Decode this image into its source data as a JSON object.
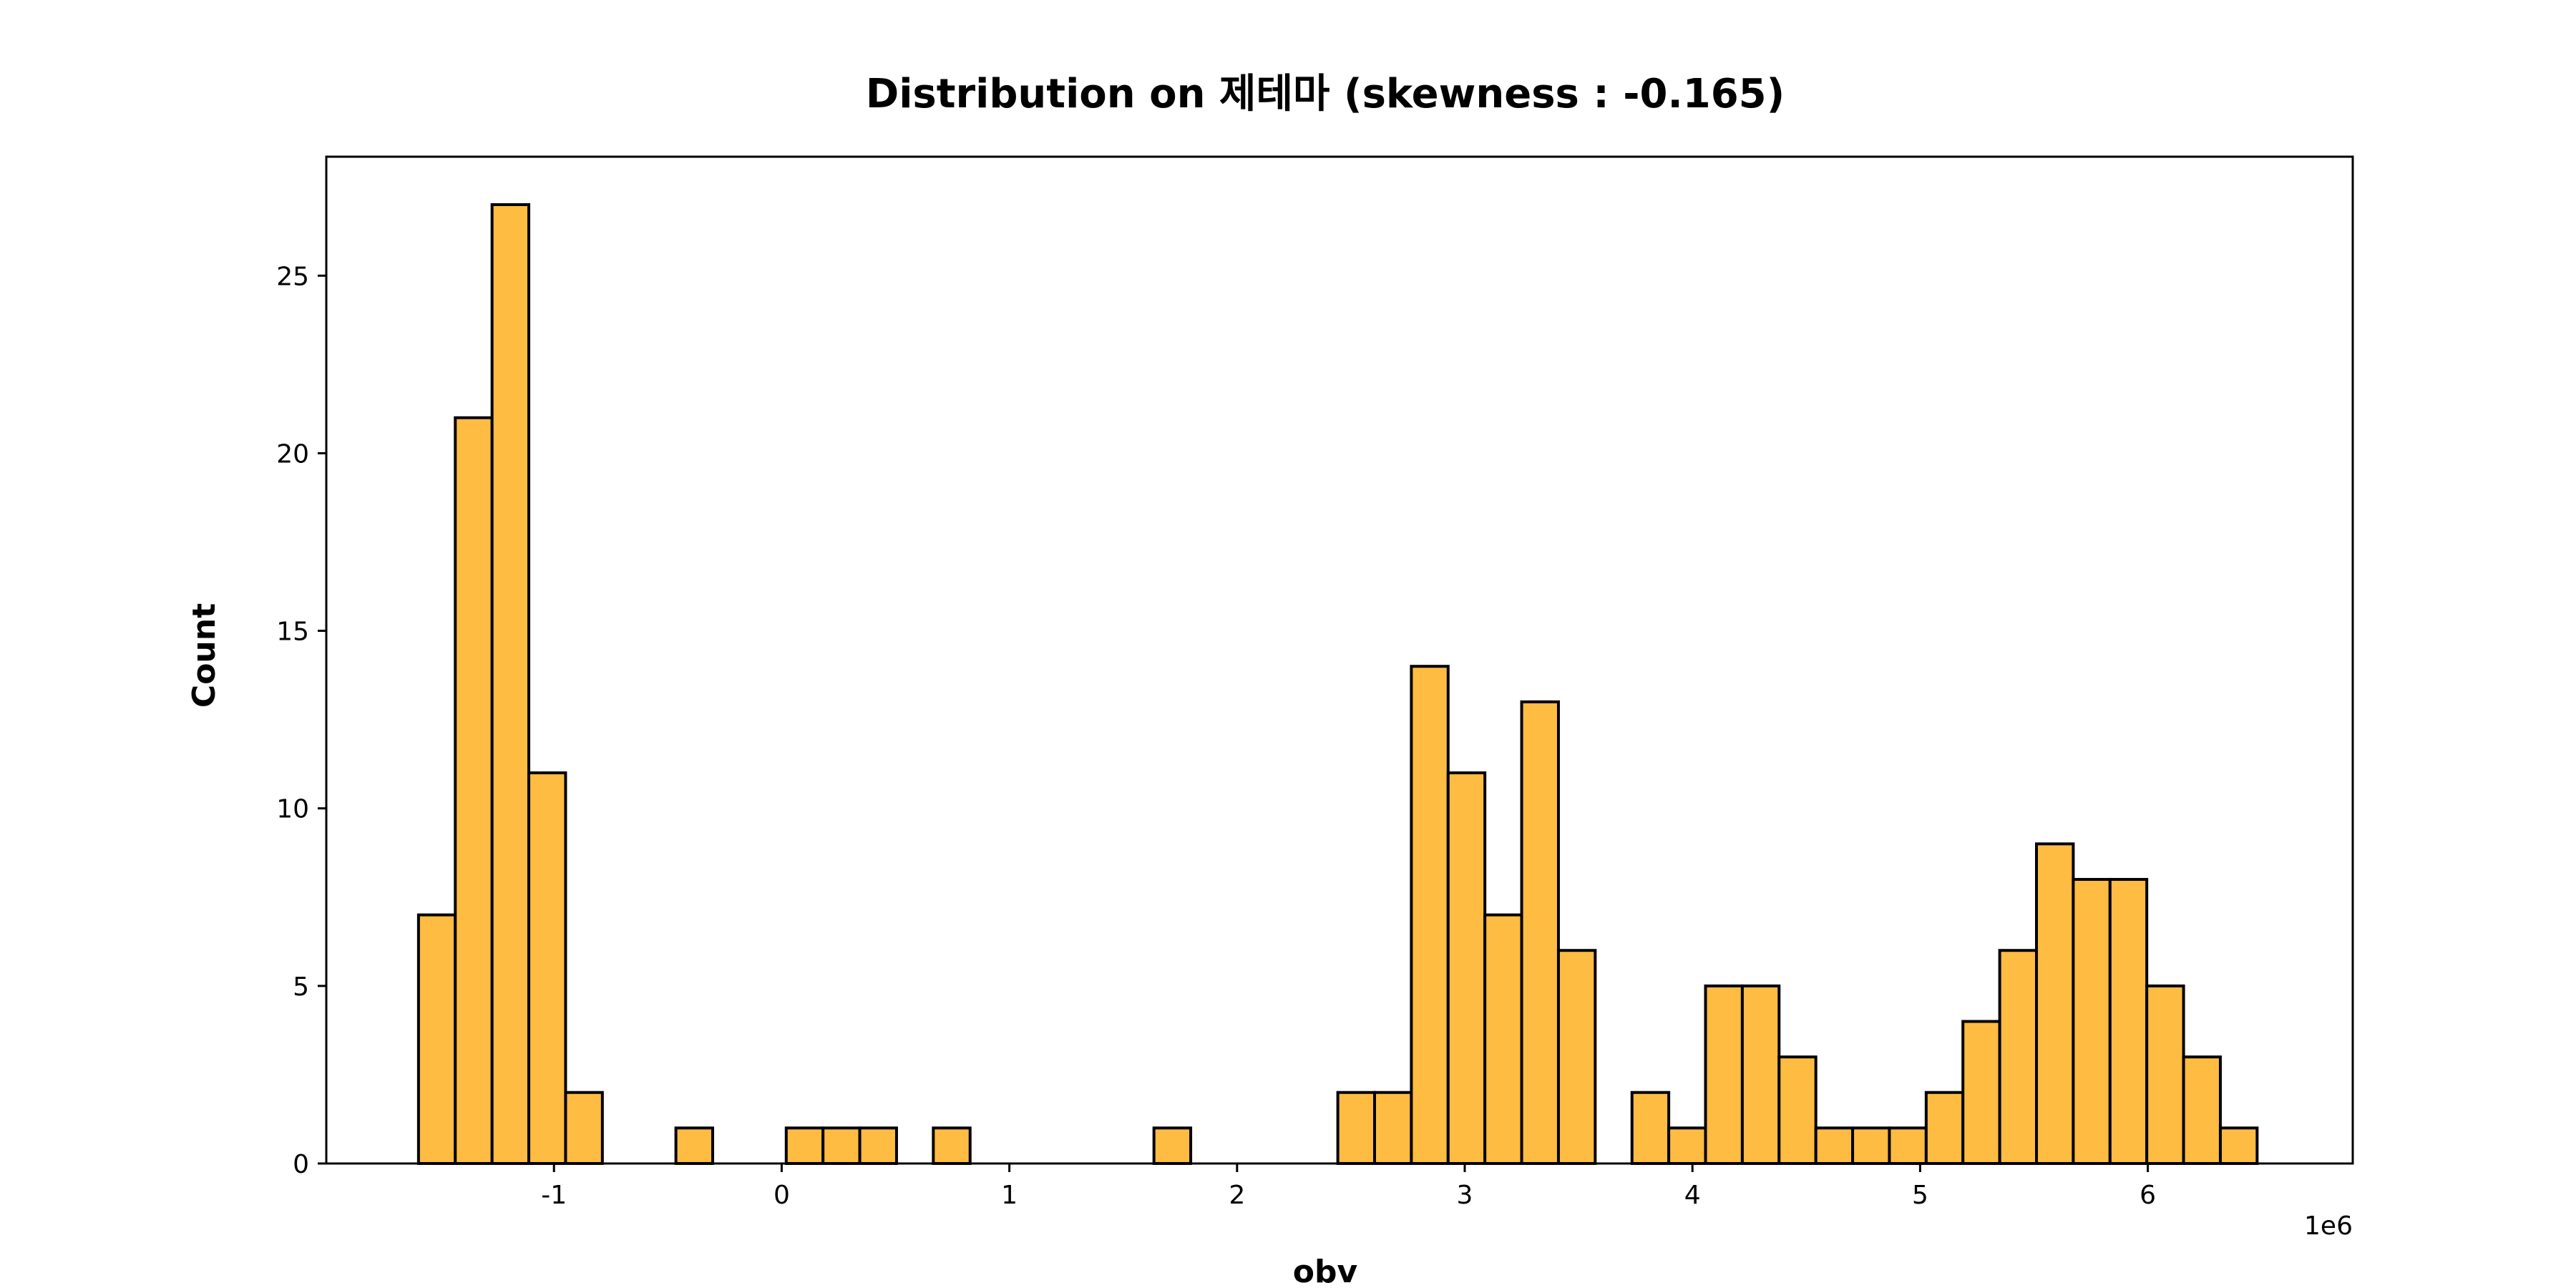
{
  "chart_data": {
    "type": "bar",
    "title": "Distribution on 제테마 (skewness : -0.165)",
    "xlabel": "obv",
    "ylabel": "Count",
    "x_offset_label": "1e6",
    "bar_color": "#FFBC42",
    "edge_color": "#000000",
    "xlim": [
      -2.0,
      6.9
    ],
    "ylim": [
      0,
      28.35
    ],
    "xticks": [
      -1,
      0,
      1,
      2,
      3,
      4,
      5,
      6
    ],
    "xtick_labels": [
      "-1",
      "0",
      "1",
      "2",
      "3",
      "4",
      "5",
      "6"
    ],
    "yticks": [
      0,
      5,
      10,
      15,
      20,
      25
    ],
    "ytick_labels": [
      "0",
      "5",
      "10",
      "15",
      "20",
      "25"
    ],
    "bin_width": 0.1615,
    "bin_start": -1.595,
    "values": [
      7,
      21,
      27,
      11,
      2,
      0,
      0,
      1,
      0,
      0,
      1,
      1,
      1,
      0,
      1,
      0,
      0,
      0,
      0,
      0,
      1,
      0,
      0,
      0,
      0,
      2,
      2,
      14,
      11,
      7,
      13,
      6,
      0,
      2,
      1,
      5,
      5,
      3,
      1,
      1,
      1,
      2,
      4,
      6,
      9,
      8,
      8,
      5,
      3,
      1
    ]
  }
}
